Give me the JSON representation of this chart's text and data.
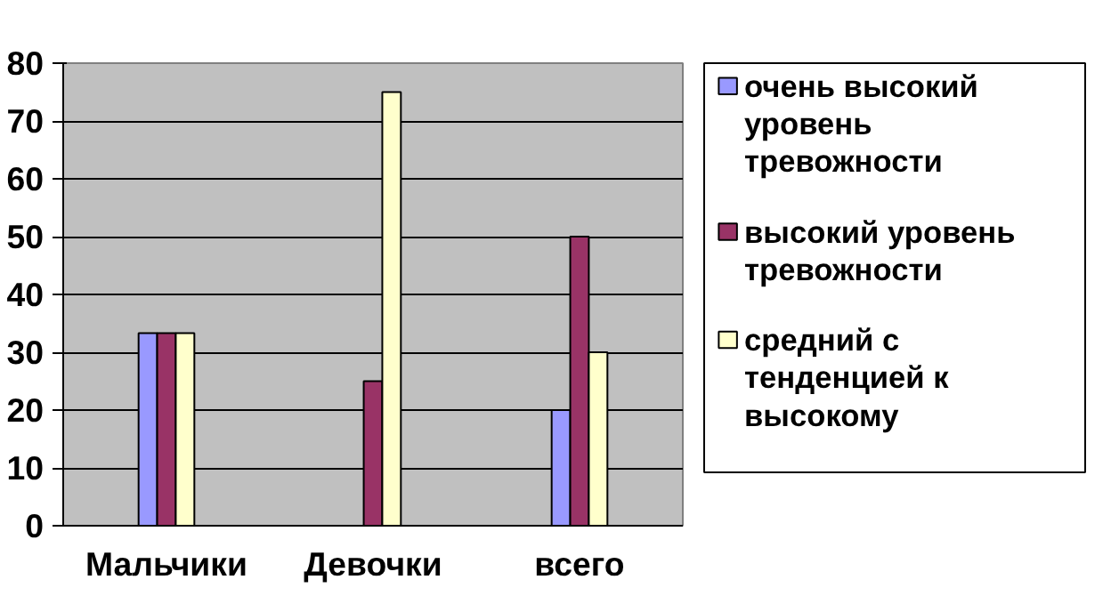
{
  "chart_data": {
    "type": "bar",
    "categories": [
      "Мальчики",
      "Девочки",
      "всего"
    ],
    "series": [
      {
        "name": "очень высокий уровень тревожности",
        "color": "#9999ff",
        "values": [
          33.3,
          0,
          20
        ]
      },
      {
        "name": "высокий уровень тревожности",
        "color": "#993366",
        "values": [
          33.3,
          25,
          50
        ]
      },
      {
        "name": "средний с тенденцией к высокому",
        "color": "#ffffcc",
        "values": [
          33.3,
          75,
          30
        ]
      }
    ],
    "ylim": [
      0,
      80
    ],
    "yticks": [
      0,
      10,
      20,
      30,
      40,
      50,
      60,
      70,
      80
    ],
    "grid": "y",
    "legend": "right"
  }
}
